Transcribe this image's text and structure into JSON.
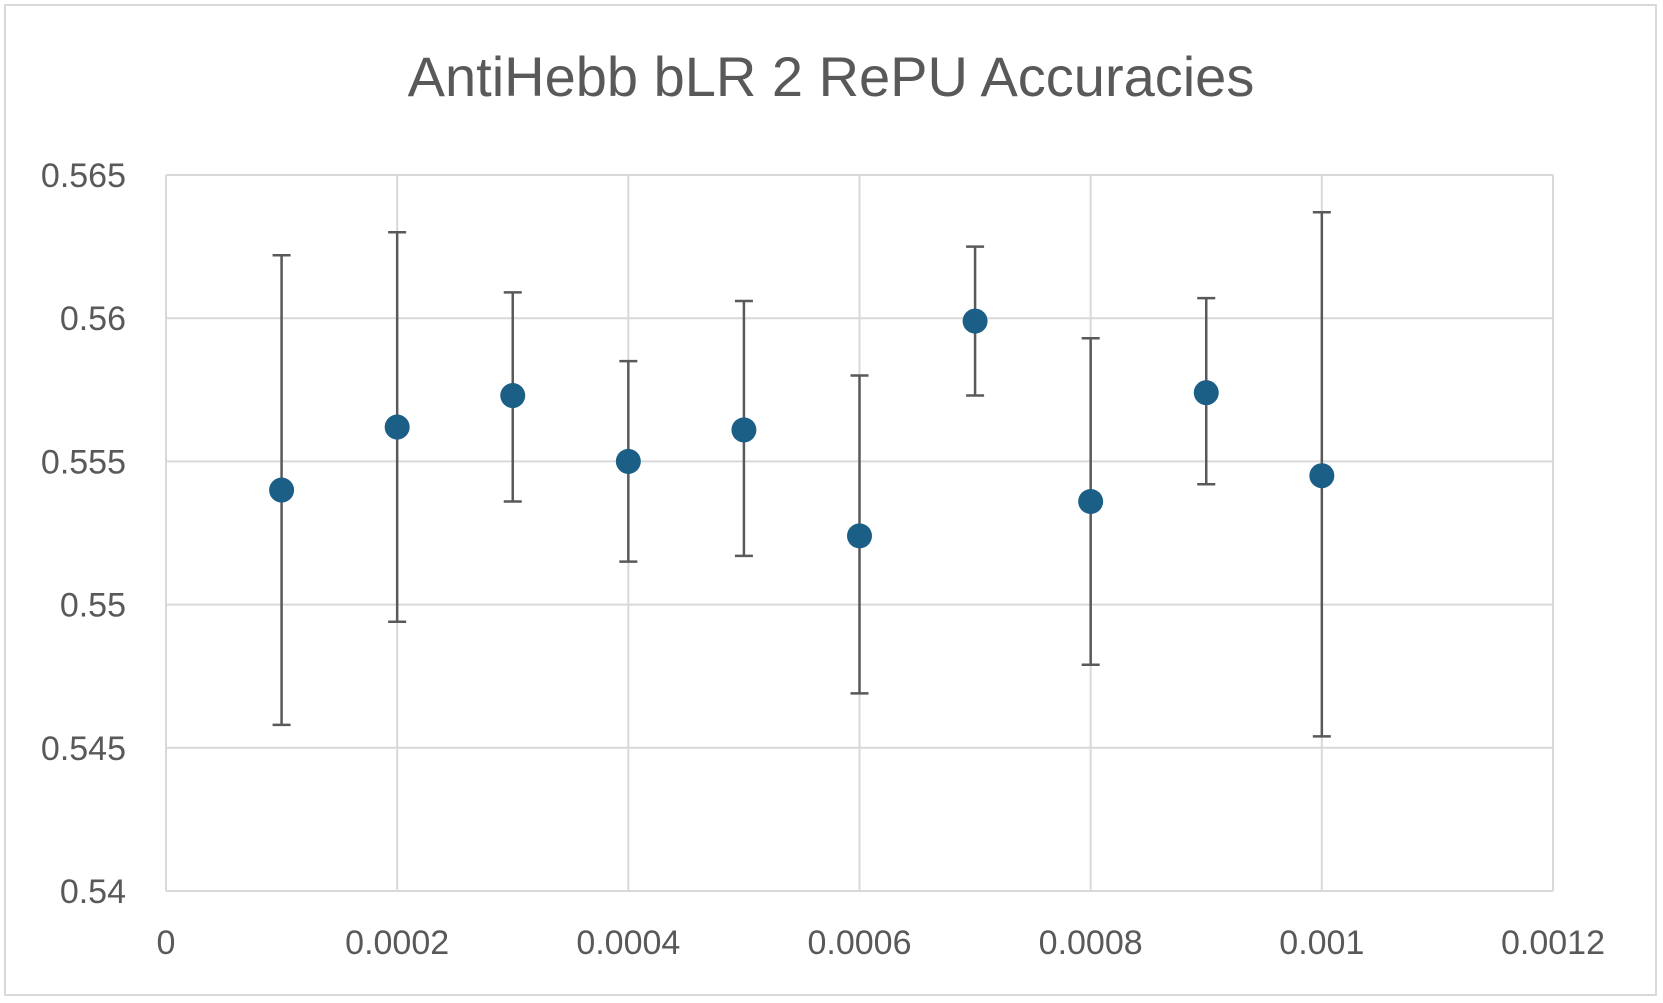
{
  "chart_data": {
    "type": "scatter",
    "title": "AntiHebb bLR 2 RePU Accuracies",
    "xlabel": "",
    "ylabel": "",
    "xlim": [
      0,
      0.0012
    ],
    "ylim": [
      0.54,
      0.565
    ],
    "x_ticks": [
      "0",
      "0.0002",
      "0.0004",
      "0.0006",
      "0.0008",
      "0.001",
      "0.0012"
    ],
    "x_tick_values": [
      0,
      0.0002,
      0.0004,
      0.0006,
      0.0008,
      0.001,
      0.0012
    ],
    "y_ticks": [
      "0.54",
      "0.545",
      "0.55",
      "0.555",
      "0.56",
      "0.565"
    ],
    "y_tick_values": [
      0.54,
      0.545,
      0.55,
      0.555,
      0.56,
      0.565
    ],
    "grid": true,
    "legend": "none",
    "colors": {
      "marker": "#1b5e86",
      "error_bar": "#595959",
      "grid": "#d9d9d9",
      "text": "#595959"
    },
    "series": [
      {
        "x": [
          0.0001,
          0.0002,
          0.0003,
          0.0004,
          0.0005,
          0.0006,
          0.0007,
          0.0008,
          0.0009,
          0.001
        ],
        "y": [
          0.554,
          0.5562,
          0.5573,
          0.555,
          0.5561,
          0.5524,
          0.5599,
          0.5536,
          0.5574,
          0.5545
        ],
        "y_err_upper": [
          0.5622,
          0.563,
          0.5609,
          0.5585,
          0.5606,
          0.558,
          0.5625,
          0.5593,
          0.5607,
          0.5637
        ],
        "y_err_lower": [
          0.5458,
          0.5494,
          0.5536,
          0.5515,
          0.5517,
          0.5469,
          0.5573,
          0.5479,
          0.5542,
          0.5454
        ]
      }
    ]
  }
}
